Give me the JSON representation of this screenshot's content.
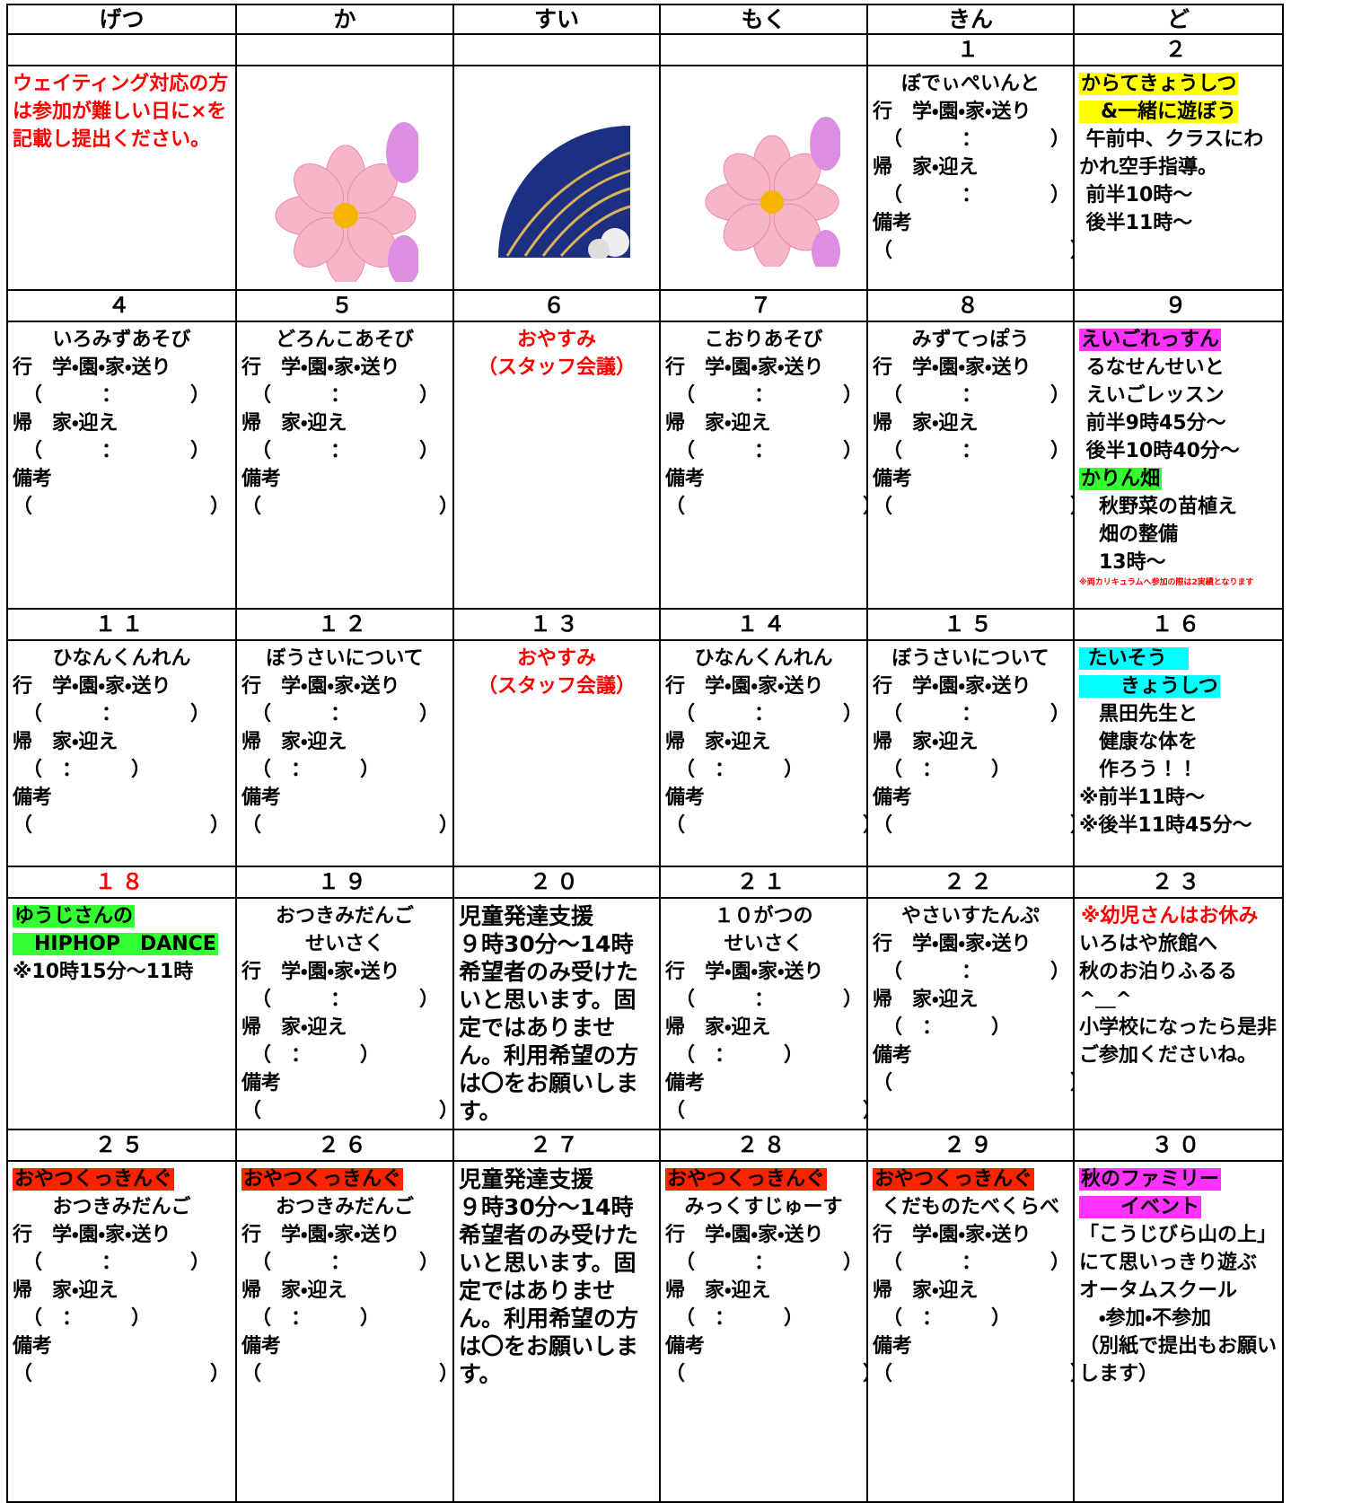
{
  "header": {
    "days": [
      "げつ",
      "か",
      "すい",
      "もく",
      "きん",
      "ど"
    ]
  },
  "weeks": [
    {
      "dates": [
        null,
        null,
        null,
        null,
        "１",
        "２"
      ],
      "cells": [
        {
          "lines": [
            {
              "text": "ウェイティング対応の方は参加が難しい日に×を記載し提出ください。",
              "color": "#ff0000"
            }
          ]
        },
        {},
        {},
        {},
        {
          "title": [
            "ぼでぃぺいんと"
          ],
          "lines": [
            "行　学・園・家・送り",
            "　（　　　：　　　　）",
            "帰　家・迎え",
            "　（　　　：　　　　）",
            "備考",
            "（　　　　　　　　　）"
          ]
        },
        {
          "label": [
            {
              "text": "からてきょうしつ",
              "bg": "#ffff00"
            },
            {
              "text": "　&一緒に遊ぼう",
              "bg": "#ffff00"
            }
          ],
          "lines": [
            " 午前中、クラスにわかれ空手指導。",
            " 前半10時～",
            " 後半11時～"
          ]
        }
      ]
    },
    {
      "dates": [
        "４",
        "５",
        "６",
        "７",
        "８",
        "９"
      ],
      "cells": [
        {
          "title": [
            "いろみずあそび"
          ],
          "lines": [
            "行　学・園・家・送り",
            "　（　　　：　　　　）",
            "帰　家・迎え",
            "　（　　　：　　　　）",
            "備考",
            "（　　　　　　　　　）"
          ]
        },
        {
          "title": [
            "どろんこあそび"
          ],
          "lines": [
            "行　学・園・家・送り",
            "　（　　　：　　　　）",
            "帰　家・迎え",
            "　（　　　：　　　　）",
            "備考",
            "（　　　　　　　　　）"
          ]
        },
        {
          "title": [
            {
              "text": "おやすみ",
              "color": "#ff0000"
            },
            {
              "text": "（スタッフ会議）",
              "color": "#ff0000"
            }
          ]
        },
        {
          "title": [
            "こおりあそび"
          ],
          "lines": [
            "行　学・園・家・送り",
            "　（　　　：　　　　）",
            "帰　家・迎え",
            "　（　　　：　　　　）",
            "備考",
            "（　　　　　　　　　）"
          ]
        },
        {
          "title": [
            "みずてっぽう"
          ],
          "lines": [
            "行　学・園・家・送り",
            "　（　　　：　　　　）",
            "帰　家・迎え",
            "　（　　　：　　　　）",
            "備考",
            "（　　　　　　　　　）"
          ]
        },
        {
          "label": [
            {
              "text": "えいごれっすん",
              "bg": "#ff33ff"
            }
          ],
          "lines": [
            " るなせんせいと",
            " えいごレッスン",
            " 前半9時45分～",
            " 後半10時40分～",
            {
              "text": "かりん畑",
              "bg": "#33ff33"
            },
            "　秋野菜の苗植え",
            "　畑の整備",
            "　13時～"
          ],
          "note": "※両カリキュラムへ参加の際は2実績となります"
        }
      ]
    },
    {
      "dates": [
        "１１",
        "１２",
        "１３",
        "１４",
        "１５",
        "１６"
      ],
      "cells": [
        {
          "title": [
            "ひなんくんれん"
          ],
          "lines": [
            "行　学・園・家・送り",
            "　（　　　：　　　　）",
            "帰　家・迎え",
            "　（　：　　　）",
            "備考",
            "（　　　　　　　　　）"
          ]
        },
        {
          "title": [
            "ぼうさいについて"
          ],
          "lines": [
            "行　学・園・家・送り",
            "　（　　　：　　　　）",
            "帰　家・迎え",
            "　（　：　　　）",
            "備考",
            "（　　　　　　　　　）"
          ]
        },
        {
          "title": [
            {
              "text": "おやすみ",
              "color": "#ff0000"
            },
            {
              "text": "（スタッフ会議）",
              "color": "#ff0000"
            }
          ]
        },
        {
          "title": [
            "ひなんくんれん"
          ],
          "lines": [
            "行　学・園・家・送り",
            "　（　　　：　　　　）",
            "帰　家・迎え",
            "　（　：　　　）",
            "備考",
            "（　　　　　　　　　）"
          ]
        },
        {
          "title": [
            "ぼうさいについて"
          ],
          "lines": [
            "行　学・園・家・送り",
            "　（　　　：　　　　）",
            "帰　家・迎え",
            "　（　：　　　）",
            "備考",
            "（　　　　　　　　　）"
          ]
        },
        {
          "label": [
            {
              "text": " たいそう　",
              "bg": "#00ffff"
            },
            {
              "text": "　　きょうしつ",
              "bg": "#00ffff"
            }
          ],
          "lines": [
            "　黒田先生と",
            "　健康な体を",
            "　作ろう！！",
            "※前半11時～",
            "※後半11時45分～"
          ]
        }
      ]
    },
    {
      "dates": [
        {
          "text": "１８",
          "color": "#ff0000"
        },
        "１９",
        "２０",
        "２１",
        "２２",
        "２３"
      ],
      "cells": [
        {
          "label": [
            {
              "text": "ゆうじさんの",
              "bg": "#33ff33"
            },
            {
              "text": "　HIPHOP　DANCE",
              "bg": "#33ff33"
            }
          ],
          "lines": [
            "※10時15分～11時"
          ]
        },
        {
          "title": [
            "おつきみだんご",
            "せいさく"
          ],
          "lines": [
            "行　学・園・家・送り",
            "　（　　　：　　　　）",
            "帰　家・迎え",
            "　（　：　　　）",
            "備考",
            "（　　　　　　　　　）"
          ]
        },
        {
          "big": [
            "児童発達支援",
            "９時30分～14時",
            "希望者のみ受けたいと思います。固定ではありません。利用希望の方は〇をお願いします。"
          ]
        },
        {
          "title": [
            "１０がつの",
            "せいさく"
          ],
          "lines": [
            "行　学・園・家・送り",
            "　（　　　：　　　　）",
            "帰　家・迎え",
            "　（　：　　　）",
            "備考",
            "（　　　　　　　　　）"
          ]
        },
        {
          "title": [
            "やさいすたんぷ"
          ],
          "lines": [
            "行　学・園・家・送り",
            "　（　　　：　　　　）",
            "帰　家・迎え",
            "　（　：　　　）",
            "備考",
            "（　　　　　　　　　）"
          ]
        },
        {
          "label": [
            {
              "text": "※幼児さんはお休み",
              "color": "#ff0000"
            }
          ],
          "lines": [
            "いろはや旅館へ",
            "秋のお泊りふるる",
            "^＿^",
            "小学校になったら是非ご参加くださいね。"
          ]
        }
      ]
    },
    {
      "dates": [
        "２５",
        "２６",
        "２７",
        "２８",
        "２９",
        "３０"
      ],
      "cells": [
        {
          "label": [
            {
              "text": "おやつくっきんぐ",
              "bg": "#ff2200"
            }
          ],
          "title": [
            "おつきみだんご"
          ],
          "lines": [
            "行　学・園・家・送り",
            "　（　　　：　　　　）",
            "帰　家・迎え",
            "　（　：　　　）",
            "備考",
            "（　　　　　　　　　）"
          ]
        },
        {
          "label": [
            {
              "text": "おやつくっきんぐ",
              "bg": "#ff2200"
            }
          ],
          "title": [
            "おつきみだんご"
          ],
          "lines": [
            "行　学・園・家・送り",
            "　（　　　：　　　　）",
            "帰　家・迎え",
            "　（　：　　　）",
            "備考",
            "（　　　　　　　　　）"
          ]
        },
        {
          "big": [
            "児童発達支援",
            "９時30分～14時",
            "希望者のみ受けたいと思います。固定ではありません。利用希望の方は〇をお願いします。"
          ]
        },
        {
          "label": [
            {
              "text": "おやつくっきんぐ",
              "bg": "#ff2200"
            }
          ],
          "title": [
            "みっくすじゅーす"
          ],
          "lines": [
            "行　学・園・家・送り",
            "　（　　　：　　　　）",
            "帰　家・迎え",
            "　（　：　　　）",
            "備考",
            "（　　　　　　　　　）"
          ]
        },
        {
          "label": [
            {
              "text": "おやつくっきんぐ",
              "bg": "#ff2200"
            }
          ],
          "title": [
            "くだものたべくらべ"
          ],
          "lines": [
            "行　学・園・家・送り",
            "　（　　　：　　　　）",
            "帰　家・迎え",
            "　（　：　　　）",
            "備考",
            "（　　　　　　　　　）"
          ]
        },
        {
          "label": [
            {
              "text": "秋のファミリー",
              "bg": "#ff33ff"
            },
            {
              "text": "　　イベント",
              "bg": "#ff33ff"
            }
          ],
          "lines": [
            "「こうじびら山の上」にて思いっきり遊ぶ",
            "オータムスクール",
            "　・参加・不参加",
            "（別紙で提出もお願いします）"
          ]
        }
      ]
    }
  ]
}
